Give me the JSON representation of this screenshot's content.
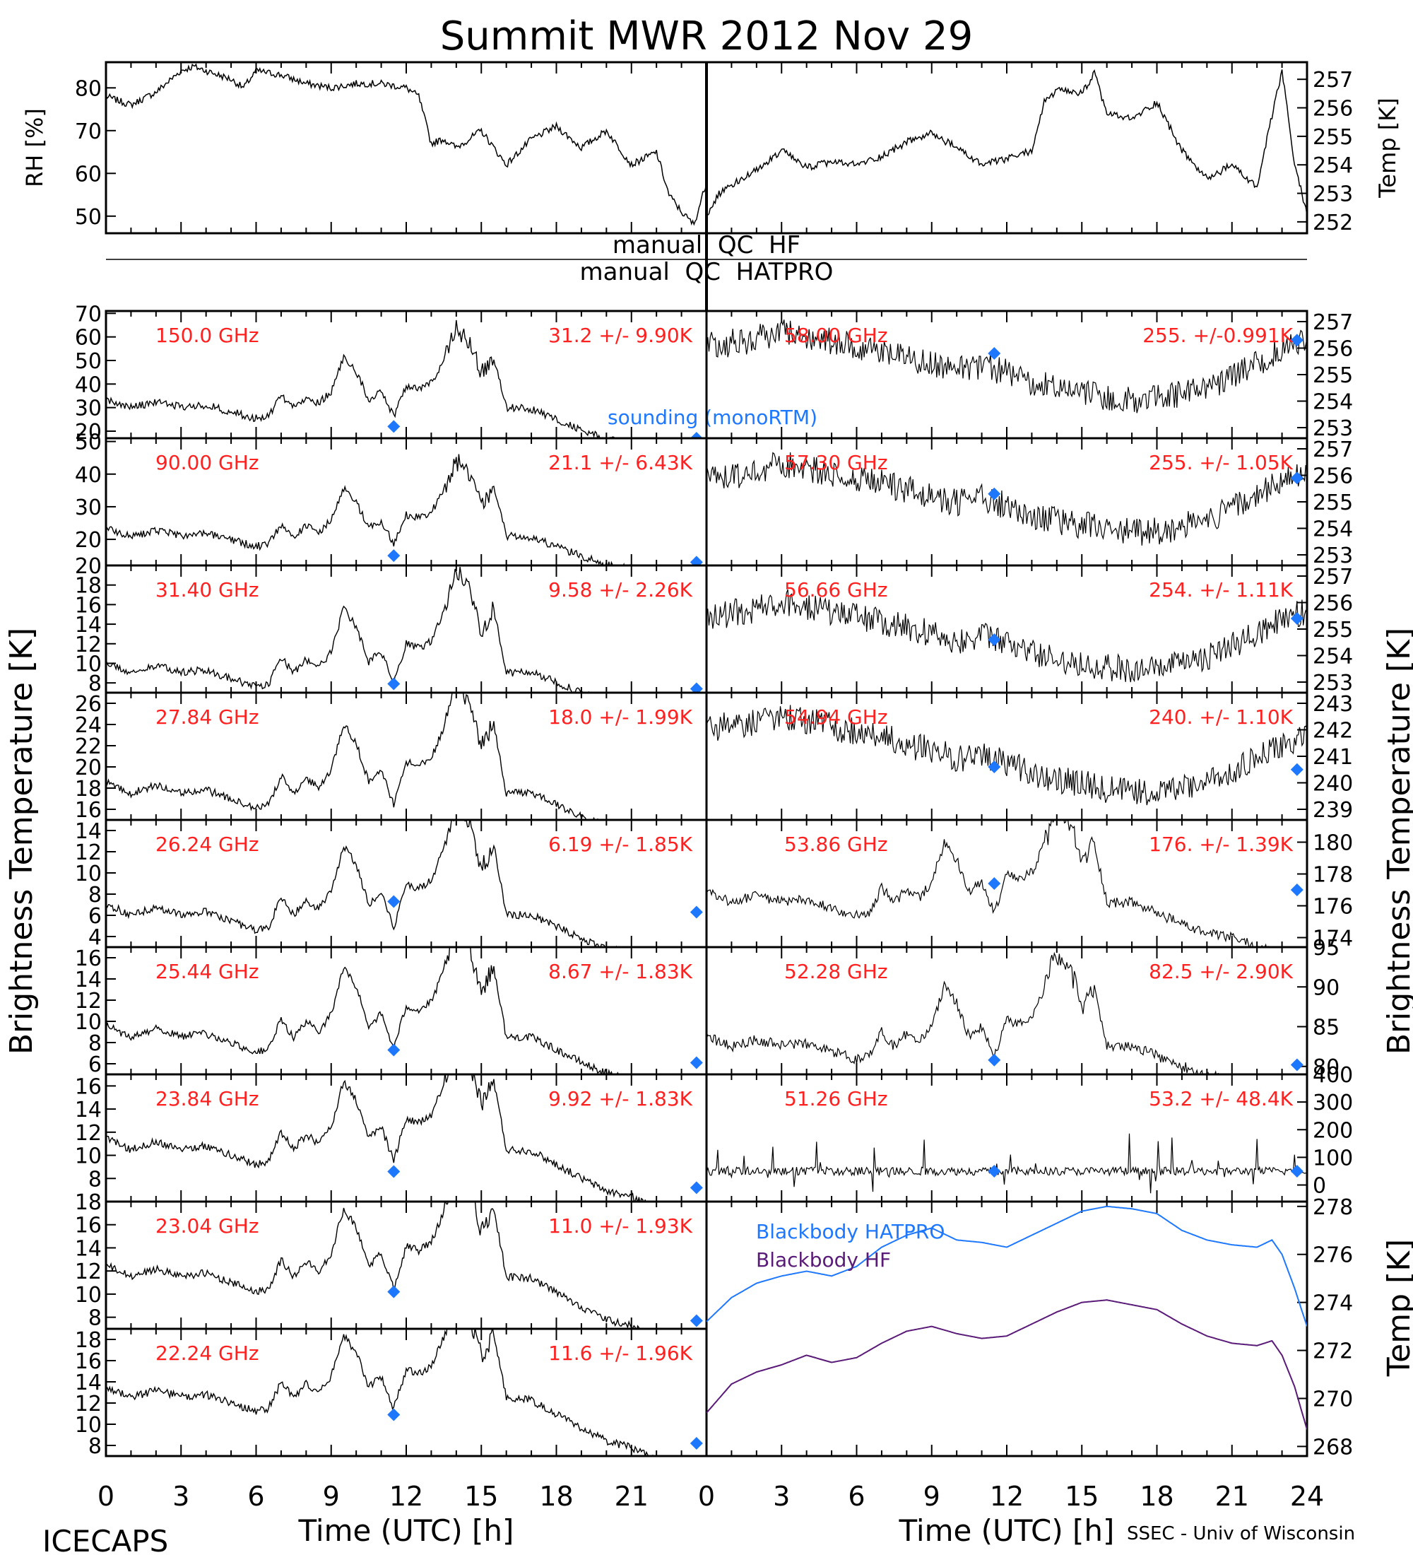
{
  "title": "Summit MWR 2012 Nov 29",
  "footer": {
    "left": "ICECAPS",
    "right": "SSEC - Univ of Wisconsin"
  },
  "qc": {
    "hf": "manual  QC  HF",
    "hatpro": "manual  QC  HATPRO"
  },
  "colors": {
    "trace": "#000000",
    "annotation": "#ff2020",
    "sounding": "#1e78ff",
    "bb_hatpro": "#1e78ff",
    "bb_hf": "#5a1a78"
  },
  "chart_data": [
    {
      "id": "rh",
      "type": "line",
      "ylabel": "RH [%]",
      "xlim": [
        0,
        24
      ],
      "ylim": [
        46,
        86
      ],
      "yticks": [
        50,
        60,
        70,
        80
      ],
      "series": [
        {
          "x": [
            0,
            1,
            2,
            3,
            3.5,
            4,
            5,
            5.5,
            6,
            7,
            8,
            9,
            10,
            11,
            12,
            12.5,
            13,
            13.5,
            14,
            15,
            16,
            17,
            18,
            19,
            20,
            21,
            22,
            22.5,
            23,
            23.5,
            24
          ],
          "values": [
            78,
            76,
            79,
            84,
            85,
            84,
            82,
            80,
            84,
            83,
            81,
            80,
            81,
            81,
            80,
            78,
            67,
            68,
            66,
            70,
            62,
            68,
            71,
            66,
            70,
            62,
            65,
            55,
            51,
            48,
            58
          ]
        }
      ]
    },
    {
      "id": "temp",
      "type": "line",
      "ylabel": "Temp [K]",
      "xlim": [
        0,
        24
      ],
      "ylim": [
        251.6,
        257.6
      ],
      "yticks": [
        252,
        253,
        254,
        255,
        256,
        257
      ],
      "series": [
        {
          "x": [
            0,
            0.5,
            1,
            2,
            3,
            4,
            5,
            6,
            7,
            8,
            9,
            10,
            11,
            12,
            13,
            13.5,
            14,
            15,
            15.5,
            16,
            17,
            18,
            19,
            20,
            21,
            22,
            22.5,
            23,
            23.5,
            24
          ],
          "values": [
            252.2,
            253.0,
            253.3,
            253.8,
            254.5,
            253.9,
            254.1,
            254.0,
            254.3,
            254.8,
            255.1,
            254.6,
            254.0,
            254.2,
            254.5,
            256.2,
            256.6,
            256.5,
            257.2,
            255.8,
            255.6,
            256.2,
            254.5,
            253.5,
            254.0,
            253.2,
            255.3,
            257.3,
            254.0,
            252.3
          ]
        }
      ]
    }
  ],
  "bt_left": [
    {
      "freq": "150.0 GHz",
      "stats": "31.2 +/-  9.90K",
      "ylim": [
        17,
        71
      ],
      "yticks": [
        20,
        30,
        40,
        50,
        60,
        70
      ],
      "baseline": 30,
      "amp": 16,
      "end": 17,
      "sounding": [
        [
          11.5,
          22
        ],
        [
          23.6,
          17
        ]
      ],
      "note": "sounding (monoRTM)"
    },
    {
      "freq": "90.00 GHz",
      "stats": "21.1 +/-  6.43K",
      "ylim": [
        12,
        51
      ],
      "yticks": [
        20,
        30,
        40,
        50
      ],
      "baseline": 21,
      "amp": 11,
      "end": 13,
      "sounding": [
        [
          11.5,
          15
        ],
        [
          23.6,
          13
        ]
      ]
    },
    {
      "freq": "31.40 GHz",
      "stats": "9.58 +/- 2.26K",
      "ylim": [
        7,
        20
      ],
      "yticks": [
        8,
        10,
        12,
        14,
        16,
        18,
        20
      ],
      "baseline": 9,
      "amp": 5,
      "end": 7.4,
      "sounding": [
        [
          11.5,
          7.9
        ],
        [
          23.6,
          7.4
        ]
      ]
    },
    {
      "freq": "27.84 GHz",
      "stats": "18.0 +/- 1.99K",
      "ylim": [
        15,
        27
      ],
      "yticks": [
        16,
        18,
        20,
        22,
        24,
        26
      ],
      "baseline": 17.5,
      "amp": 5,
      "end": 15.6,
      "sounding": []
    },
    {
      "freq": "26.24 GHz",
      "stats": "6.19 +/- 1.85K",
      "ylim": [
        3,
        15
      ],
      "yticks": [
        4,
        6,
        8,
        10,
        12,
        14
      ],
      "baseline": 6,
      "amp": 5,
      "end": 4,
      "sounding": [
        [
          11.5,
          7.3
        ],
        [
          23.6,
          6.3
        ]
      ]
    },
    {
      "freq": "25.44 GHz",
      "stats": "8.67 +/- 1.83K",
      "ylim": [
        5,
        17
      ],
      "yticks": [
        6,
        8,
        10,
        12,
        14,
        16
      ],
      "baseline": 8.5,
      "amp": 5,
      "end": 6,
      "sounding": [
        [
          11.5,
          7.3
        ],
        [
          23.6,
          6.1
        ]
      ]
    },
    {
      "freq": "23.84 GHz",
      "stats": "9.92 +/- 1.83K",
      "ylim": [
        6,
        17
      ],
      "yticks": [
        8,
        10,
        12,
        14,
        16
      ],
      "baseline": 10.5,
      "amp": 4.5,
      "end": 7.3,
      "sounding": [
        [
          11.5,
          8.6
        ],
        [
          23.6,
          7.2
        ]
      ]
    },
    {
      "freq": "23.04 GHz",
      "stats": "11.0 +/- 1.93K",
      "ylim": [
        7,
        18
      ],
      "yticks": [
        8,
        10,
        12,
        14,
        16,
        18
      ],
      "baseline": 11.5,
      "amp": 4.5,
      "end": 8,
      "sounding": [
        [
          11.5,
          10.2
        ],
        [
          23.6,
          7.7
        ]
      ]
    },
    {
      "freq": "22.24 GHz",
      "stats": "11.6 +/- 1.96K",
      "ylim": [
        7,
        19
      ],
      "yticks": [
        8,
        10,
        12,
        14,
        16,
        18
      ],
      "baseline": 12.5,
      "amp": 4.5,
      "end": 8.3,
      "sounding": [
        [
          11.5,
          10.9
        ],
        [
          23.6,
          8.2
        ]
      ]
    }
  ],
  "bt_right": [
    {
      "freq": "58.00 GHz",
      "stats": "255. +/-0.991K",
      "ylim": [
        252.6,
        257.4
      ],
      "yticks": [
        253,
        254,
        255,
        256,
        257
      ],
      "pattern": "oxygen",
      "top": 256.8,
      "bottom": 253.8,
      "sounding": [
        [
          11.5,
          255.8
        ],
        [
          23.6,
          256.3
        ]
      ]
    },
    {
      "freq": "57.30 GHz",
      "stats": "255. +/- 1.05K",
      "ylim": [
        252.6,
        257.4
      ],
      "yticks": [
        253,
        254,
        255,
        256,
        257
      ],
      "pattern": "oxygen",
      "top": 256.6,
      "bottom": 253.6,
      "sounding": [
        [
          11.5,
          255.3
        ],
        [
          23.6,
          255.9
        ]
      ]
    },
    {
      "freq": "56.66 GHz",
      "stats": "254. +/- 1.11K",
      "ylim": [
        252.6,
        257.4
      ],
      "yticks": [
        253,
        254,
        255,
        256,
        257
      ],
      "pattern": "oxygen",
      "top": 256.2,
      "bottom": 253.2,
      "sounding": [
        [
          11.5,
          254.6
        ],
        [
          23.6,
          255.4
        ]
      ]
    },
    {
      "freq": "54.94 GHz",
      "stats": "240. +/- 1.10K",
      "ylim": [
        238.6,
        243.4
      ],
      "yticks": [
        239,
        240,
        241,
        242,
        243
      ],
      "pattern": "oxygen_down",
      "top": 242.5,
      "bottom": 239.5,
      "sounding": [
        [
          11.5,
          240.6
        ],
        [
          23.6,
          240.5
        ]
      ]
    },
    {
      "freq": "53.86 GHz",
      "stats": "176. +/- 1.39K",
      "ylim": [
        173.4,
        181.4
      ],
      "yticks": [
        174,
        176,
        178,
        180
      ],
      "pattern": "water",
      "baseline": 176.2,
      "amp": 3.5,
      "end": 174.8,
      "sounding": [
        [
          11.5,
          177.4
        ],
        [
          23.6,
          177.0
        ]
      ]
    },
    {
      "freq": "52.28 GHz",
      "stats": "82.5 +/- 2.90K",
      "ylim": [
        79,
        95
      ],
      "yticks": [
        80,
        85,
        90,
        95
      ],
      "pattern": "water",
      "baseline": 82.5,
      "amp": 7,
      "end": 80.3,
      "sounding": [
        [
          11.5,
          80.8
        ],
        [
          23.6,
          80.2
        ]
      ]
    },
    {
      "freq": "51.26 GHz",
      "stats": "53.2 +/- 48.4K",
      "ylim": [
        -60,
        400
      ],
      "yticks": [
        0,
        100,
        200,
        300,
        400
      ],
      "pattern": "noisy",
      "baseline": 50,
      "sounding": [
        [
          11.5,
          50
        ],
        [
          23.6,
          50
        ]
      ]
    }
  ],
  "blackbody": {
    "ylabel": "Temp [K]",
    "ylim": [
      267.6,
      278.2
    ],
    "yticks": [
      268,
      270,
      272,
      274,
      276,
      278
    ],
    "series": [
      {
        "name": "Blackbody HATPRO",
        "x": [
          0,
          1,
          2,
          3,
          4,
          5,
          6,
          7,
          8,
          9,
          10,
          11,
          12,
          13,
          14,
          15,
          16,
          17,
          18,
          19,
          20,
          21,
          22,
          22.6,
          23,
          23.5,
          24
        ],
        "values": [
          273.2,
          274.2,
          274.8,
          275.1,
          275.3,
          275.1,
          275.5,
          276.3,
          276.8,
          277.1,
          276.6,
          276.5,
          276.3,
          276.8,
          277.3,
          277.8,
          278.0,
          277.9,
          277.7,
          277.0,
          276.6,
          276.4,
          276.3,
          276.6,
          276.0,
          274.6,
          273.0
        ]
      },
      {
        "name": "Blackbody HF",
        "x": [
          0,
          1,
          2,
          3,
          4,
          5,
          6,
          7,
          8,
          9,
          10,
          11,
          12,
          13,
          14,
          15,
          16,
          17,
          18,
          19,
          20,
          21,
          22,
          22.6,
          23,
          23.5,
          24
        ],
        "values": [
          269.4,
          270.6,
          271.1,
          271.4,
          271.8,
          271.5,
          271.7,
          272.3,
          272.8,
          273.0,
          272.7,
          272.5,
          272.6,
          273.1,
          273.6,
          274.0,
          274.1,
          273.9,
          273.7,
          273.1,
          272.6,
          272.3,
          272.2,
          272.4,
          271.8,
          270.5,
          268.7
        ]
      }
    ]
  },
  "shared": {
    "ylabel_left": "Brightness Temperature [K]",
    "ylabel_right": "Brightness Temperature [K]",
    "xlabel": "Time (UTC) [h]",
    "xticks_left": [
      0,
      3,
      6,
      9,
      12,
      15,
      18,
      21
    ],
    "xticks_right": [
      0,
      3,
      6,
      9,
      12,
      15,
      18,
      21,
      24
    ]
  }
}
